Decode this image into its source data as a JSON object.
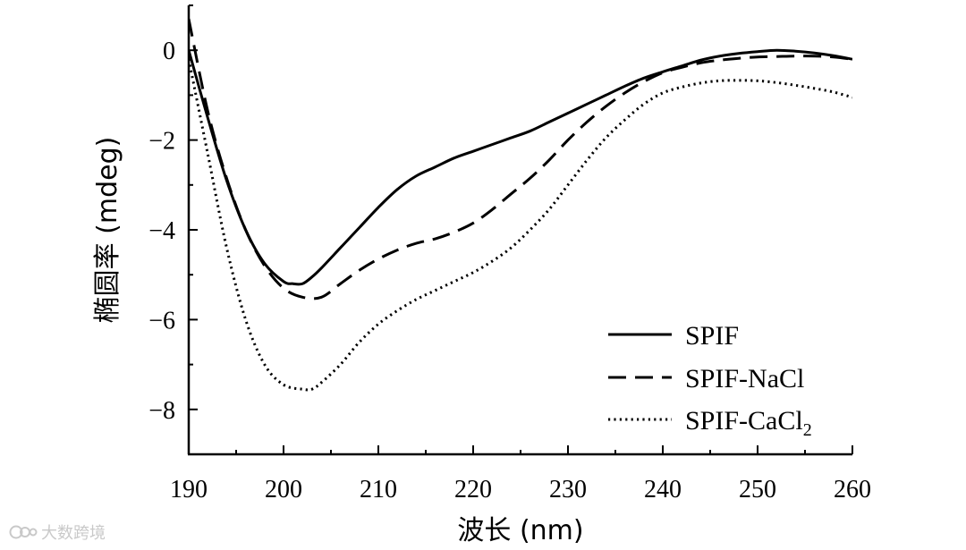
{
  "chart_data": {
    "type": "line",
    "xlabel": "波长 (nm)",
    "ylabel": "椭圆率 (mdeg)",
    "xlim": [
      190,
      260
    ],
    "ylim": [
      -9,
      1
    ],
    "xticks": [
      190,
      200,
      210,
      220,
      230,
      240,
      250,
      260
    ],
    "xtick_labels": [
      "190",
      "200",
      "210",
      "220",
      "230",
      "240",
      "250",
      "260"
    ],
    "yticks": [
      0,
      -2,
      -4,
      -6,
      -8
    ],
    "ytick_labels": [
      "0",
      "−2",
      "−4",
      "−6",
      "−8"
    ],
    "legend_position": "bottom-right",
    "grid": false,
    "series": [
      {
        "name": "SPIF",
        "style": "solid",
        "legend_label": "SPIF",
        "legend_sub": "",
        "x": [
          190,
          192,
          194,
          196,
          198,
          200,
          201,
          202,
          203,
          204,
          206,
          208,
          210,
          212,
          214,
          216,
          218,
          220,
          222,
          224,
          226,
          228,
          230,
          232,
          234,
          236,
          238,
          240,
          242,
          244,
          246,
          248,
          250,
          252,
          254,
          256,
          258,
          260
        ],
        "y": [
          0.0,
          -1.5,
          -2.9,
          -4.0,
          -4.75,
          -5.15,
          -5.2,
          -5.2,
          -5.05,
          -4.85,
          -4.4,
          -3.95,
          -3.5,
          -3.1,
          -2.8,
          -2.6,
          -2.4,
          -2.25,
          -2.1,
          -1.95,
          -1.8,
          -1.6,
          -1.4,
          -1.2,
          -1.0,
          -0.8,
          -0.62,
          -0.48,
          -0.35,
          -0.22,
          -0.13,
          -0.07,
          -0.03,
          0.0,
          -0.02,
          -0.06,
          -0.12,
          -0.2
        ]
      },
      {
        "name": "SPIF-NaCl",
        "style": "dashed",
        "legend_label": "SPIF-NaCl",
        "legend_sub": "",
        "x": [
          190,
          192,
          194,
          196,
          198,
          200,
          202,
          204,
          206,
          208,
          210,
          212,
          214,
          216,
          218,
          220,
          222,
          224,
          226,
          228,
          230,
          232,
          234,
          236,
          238,
          240,
          242,
          244,
          246,
          248,
          250,
          252,
          254,
          256,
          258,
          260
        ],
        "y": [
          0.7,
          -1.35,
          -2.85,
          -4.0,
          -4.8,
          -5.3,
          -5.5,
          -5.5,
          -5.2,
          -4.9,
          -4.65,
          -4.45,
          -4.3,
          -4.2,
          -4.05,
          -3.85,
          -3.55,
          -3.2,
          -2.85,
          -2.45,
          -2.0,
          -1.6,
          -1.25,
          -0.95,
          -0.7,
          -0.5,
          -0.38,
          -0.28,
          -0.22,
          -0.18,
          -0.15,
          -0.14,
          -0.13,
          -0.13,
          -0.15,
          -0.2
        ]
      },
      {
        "name": "SPIF-CaCl2",
        "style": "dotted",
        "legend_label": "SPIF-CaCl",
        "legend_sub": "2",
        "x": [
          190,
          192,
          194,
          196,
          198,
          200,
          202,
          203,
          204,
          206,
          208,
          210,
          212,
          214,
          216,
          218,
          220,
          222,
          224,
          226,
          228,
          230,
          232,
          234,
          236,
          238,
          240,
          242,
          244,
          246,
          248,
          250,
          252,
          254,
          256,
          258,
          260
        ],
        "y": [
          -0.2,
          -2.3,
          -4.4,
          -6.0,
          -7.0,
          -7.45,
          -7.55,
          -7.55,
          -7.4,
          -7.0,
          -6.5,
          -6.1,
          -5.8,
          -5.55,
          -5.35,
          -5.15,
          -4.95,
          -4.7,
          -4.4,
          -4.0,
          -3.55,
          -3.0,
          -2.45,
          -1.95,
          -1.55,
          -1.2,
          -0.95,
          -0.82,
          -0.73,
          -0.68,
          -0.67,
          -0.68,
          -0.72,
          -0.78,
          -0.85,
          -0.93,
          -1.05
        ]
      }
    ]
  },
  "watermark": {
    "text": "大数跨境",
    "icon": "ccd-logo-icon"
  }
}
